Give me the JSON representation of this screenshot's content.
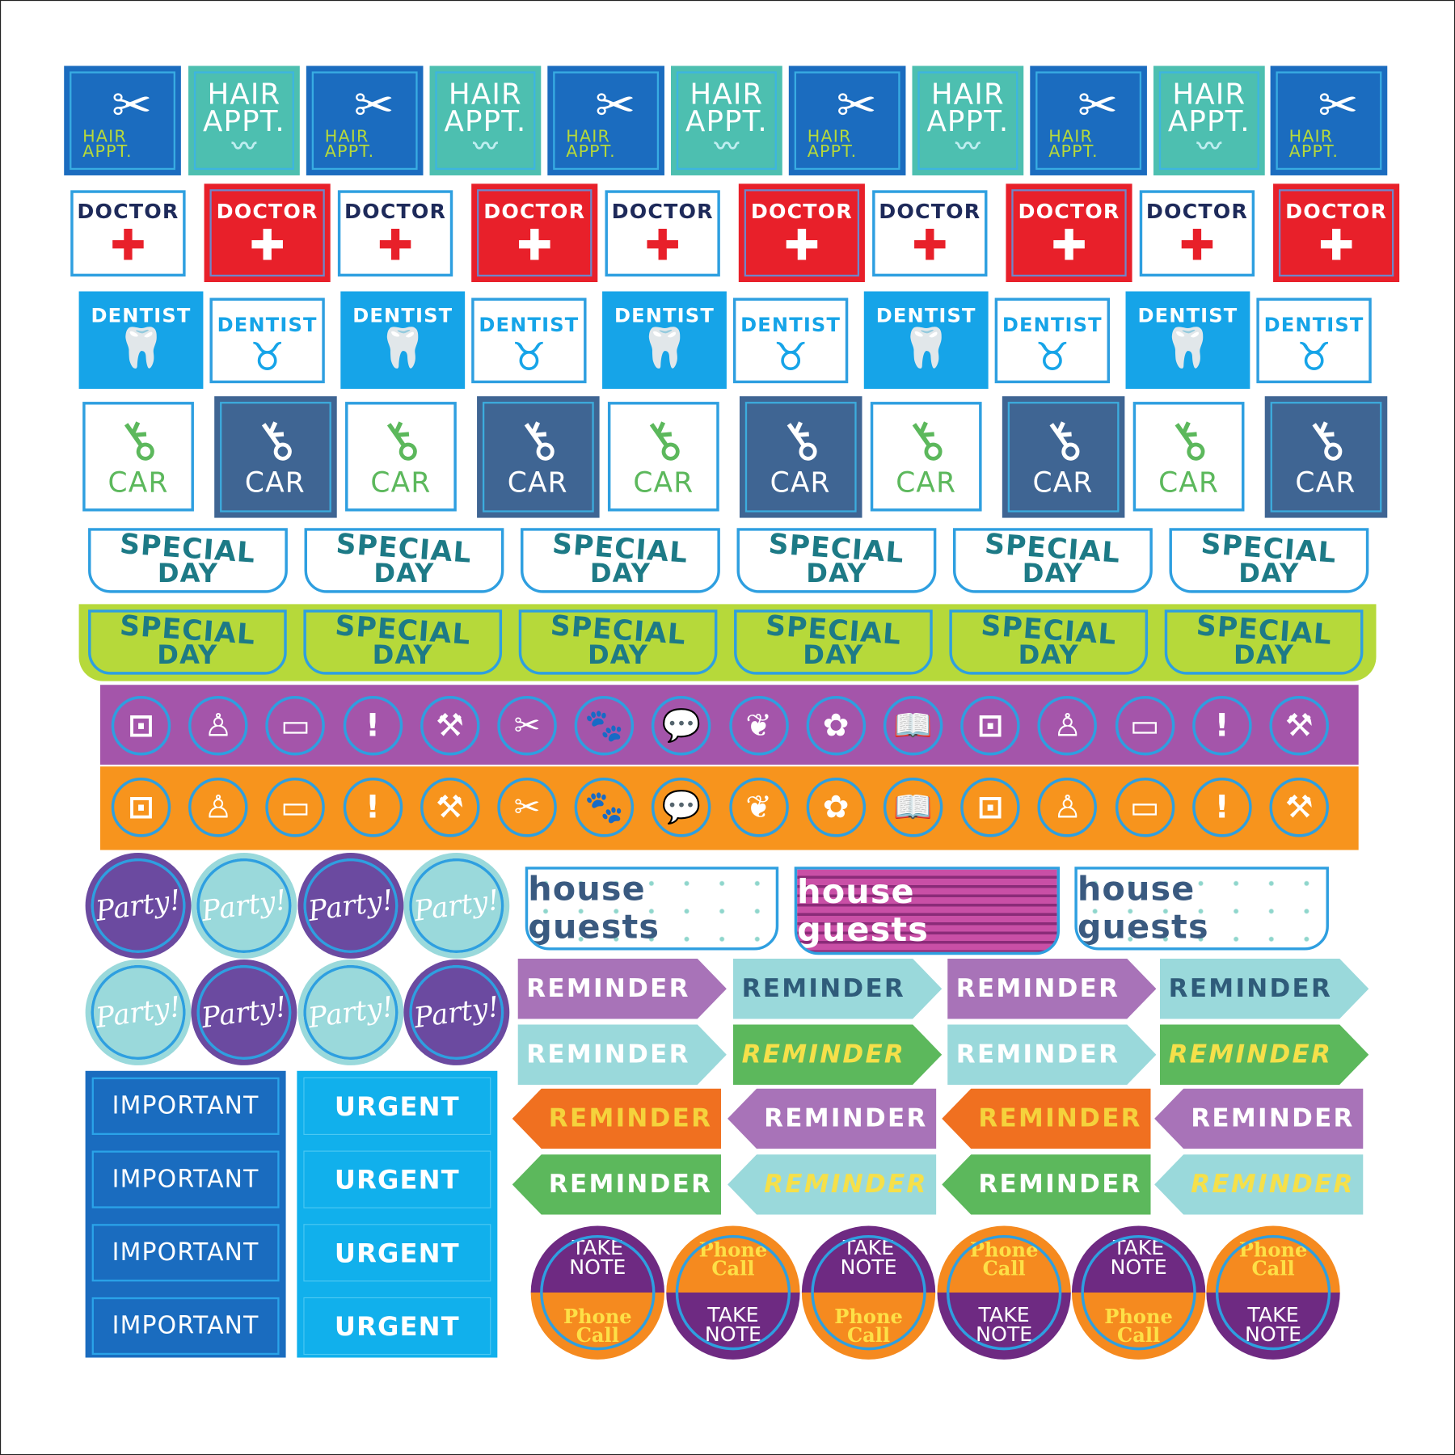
{
  "labels": {
    "hair_line1": "HAIR",
    "hair_line2": "APPT.",
    "doctor": "DOCTOR",
    "dentist": "DENTIST",
    "car": "CAR",
    "special_line1": "SPECIAL",
    "special_line2": "DAY",
    "party": "Party!",
    "important": "IMPORTANT",
    "urgent": "URGENT",
    "house_guests": "house guests",
    "reminder": "REMINDER",
    "take_line1": "TAKE",
    "take_line2": "NOTE",
    "phone_line1": "Phone",
    "phone_line2": "Call"
  },
  "icon_band_icons": [
    "washer-icon",
    "meditation-icon",
    "money-icon",
    "exclamation-icon",
    "tools-icon",
    "comb-scissors-icon",
    "paw-icon",
    "speech-bubble-icon",
    "leaf-icon",
    "flower-icon",
    "book-icon",
    "washer-icon",
    "meditation-icon",
    "money-icon",
    "exclamation-icon",
    "tools-icon"
  ],
  "colors": {
    "hair_dark": "#1b6cbf",
    "hair_teal": "#4dbfb0",
    "doctor_red": "#e8202a",
    "dentist_blue": "#16a4e8",
    "car_navy": "#3f6593",
    "car_green": "#5cb85c",
    "special_green": "#b6d93a",
    "band_purple": "#a455aa",
    "band_orange": "#f7941d",
    "party_purple": "#6b4aa0",
    "party_teal": "#9ad9db",
    "important_blue": "#1a6cbf",
    "urgent_blue": "#11b0ec",
    "house_pink": "#c94fa6",
    "reminder_purple": "#a873b8",
    "reminder_teal": "#9ad9db",
    "reminder_green": "#5cb85c",
    "reminder_orange": "#f07020",
    "note_purple": "#6e2a82",
    "note_orange": "#f58a1f"
  }
}
